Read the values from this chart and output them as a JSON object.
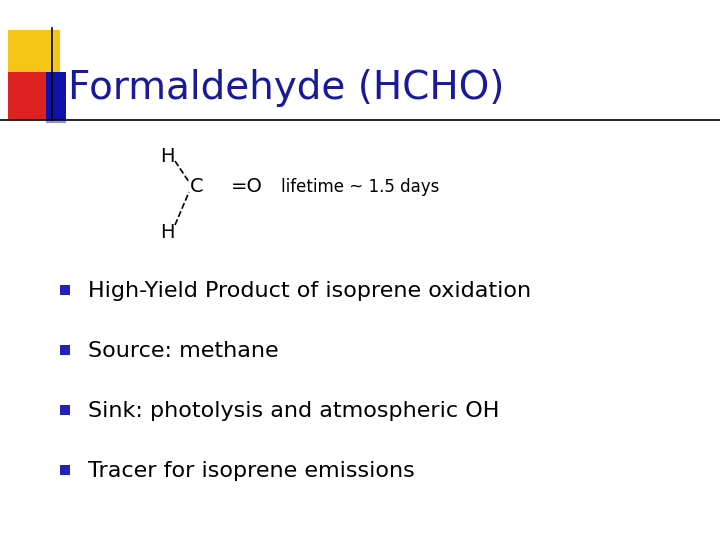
{
  "title": "Formaldehyde (HCHO)",
  "title_color": "#1a1a99",
  "title_fontsize": 28,
  "background_color": "#ffffff",
  "lifetime_text": "lifetime ~ 1.5 days",
  "lifetime_fontsize": 12,
  "bullet_color": "#2222bb",
  "bullet_fontsize": 16,
  "bullet_items": [
    "High-Yield Product of isoprene oxidation",
    "Source: methane",
    "Sink: photolysis and atmospheric OH",
    "Tracer for isoprene emissions"
  ],
  "struct_fontsize": 14,
  "yellow_color": "#f5c518",
  "red_color": "#dd2222",
  "blue_dark_color": "#1111aa",
  "blue_light_color": "#4444cc"
}
